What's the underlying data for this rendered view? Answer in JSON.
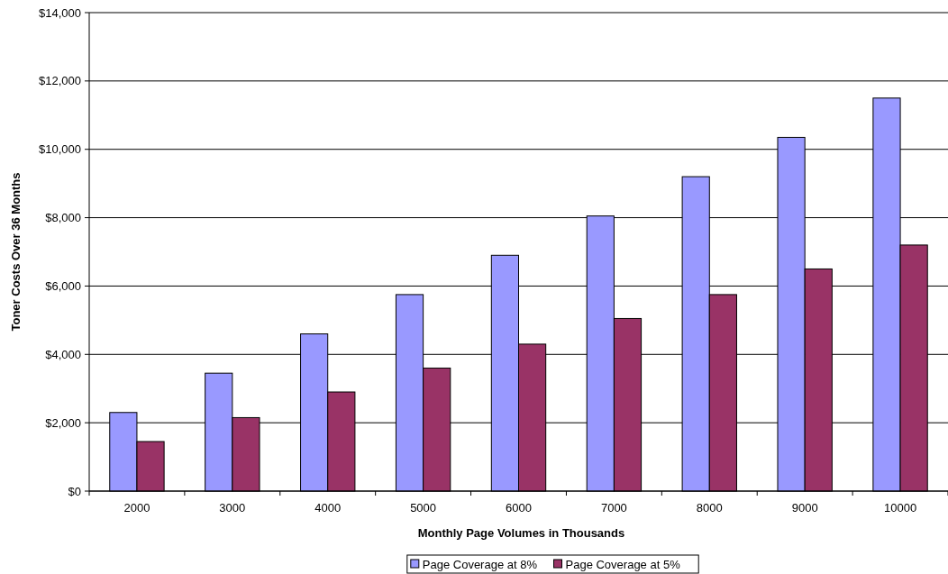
{
  "chart_data": {
    "type": "bar",
    "xlabel": "Monthly Page Volumes in Thousands",
    "ylabel": "Toner Costs Over 36 Months",
    "categories": [
      "2000",
      "3000",
      "4000",
      "5000",
      "6000",
      "7000",
      "8000",
      "9000",
      "10000"
    ],
    "series": [
      {
        "name": "Page Coverage at 8%",
        "color": "#9999ff",
        "values": [
          2300,
          3450,
          4600,
          5750,
          6900,
          8050,
          9200,
          10350,
          11500
        ]
      },
      {
        "name": "Page Coverage at 5%",
        "color": "#993366",
        "values": [
          1450,
          2150,
          2900,
          3600,
          4300,
          5050,
          5750,
          6500,
          7200
        ]
      }
    ],
    "ylim": [
      0,
      14000
    ],
    "yticks": [
      {
        "value": 0,
        "label": "$0"
      },
      {
        "value": 2000,
        "label": "$2,000"
      },
      {
        "value": 4000,
        "label": "$4,000"
      },
      {
        "value": 6000,
        "label": "$6,000"
      },
      {
        "value": 8000,
        "label": "$8,000"
      },
      {
        "value": 10000,
        "label": "$10,000"
      },
      {
        "value": 12000,
        "label": "$12,000"
      },
      {
        "value": 14000,
        "label": "$14,000"
      }
    ],
    "grid": "y",
    "legend": "bottom"
  }
}
